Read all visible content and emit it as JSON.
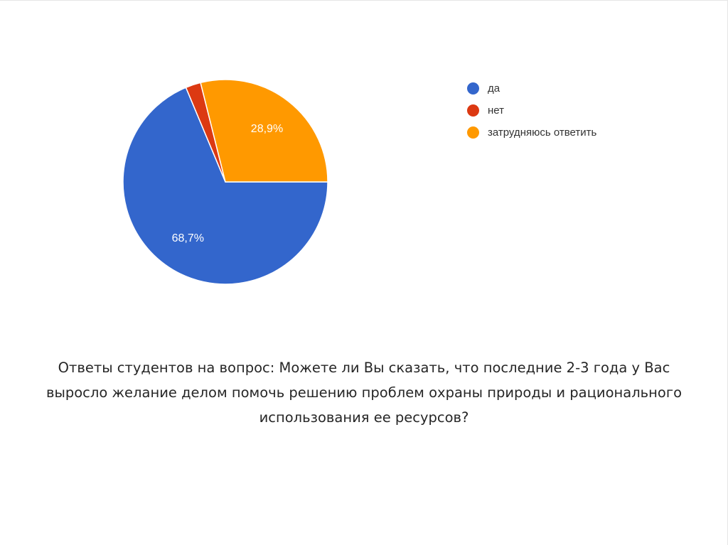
{
  "chart_data": {
    "type": "pie",
    "categories": [
      "да",
      "нет",
      "затрудняюсь ответить"
    ],
    "values": [
      68.7,
      2.4,
      28.9
    ],
    "data_labels": [
      "68,7%",
      "",
      "28,9%"
    ],
    "colors": [
      "#3366cc",
      "#dc3912",
      "#ff9900"
    ],
    "legend_position": "right"
  },
  "caption": "Ответы студентов на вопрос: Можете ли Вы сказать, что последние 2-3 года у Вас выросло желание делом помочь решению проблем охраны природы и рационального использования ее ресурсов?"
}
